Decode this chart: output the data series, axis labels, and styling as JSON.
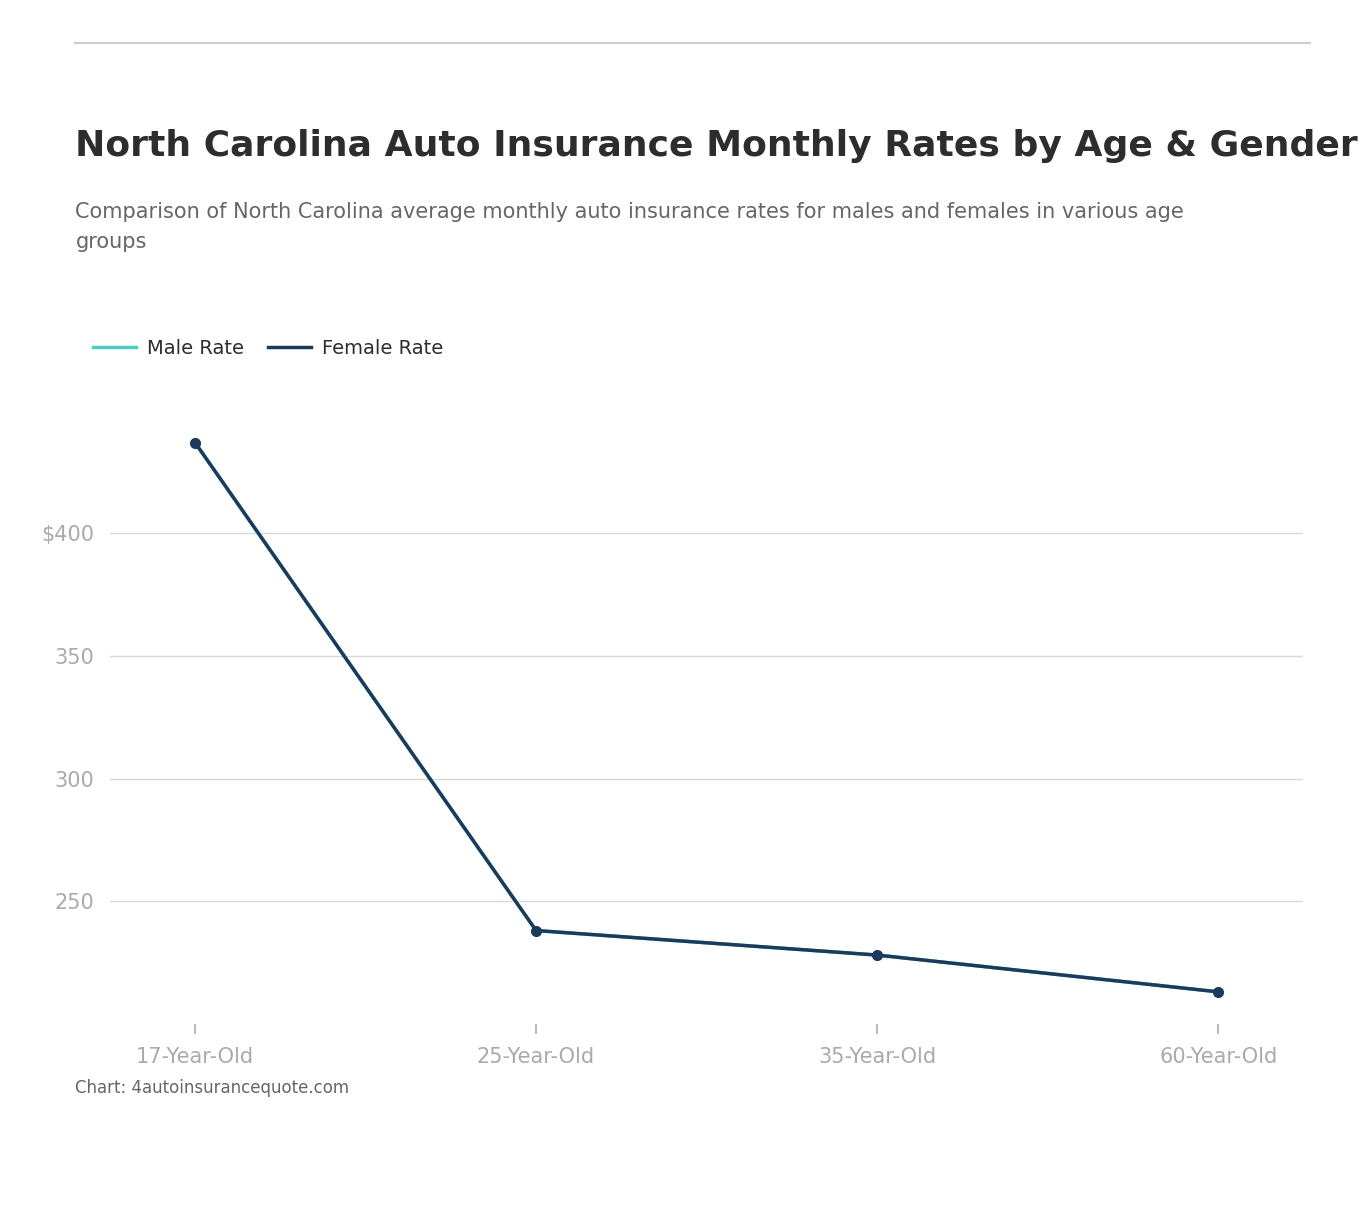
{
  "title": "North Carolina Auto Insurance Monthly Rates by Age & Gender",
  "subtitle": "Comparison of North Carolina average monthly auto insurance rates for males and females in various age\ngroups",
  "categories": [
    "17-Year-Old",
    "25-Year-Old",
    "35-Year-Old",
    "60-Year-Old"
  ],
  "male_values": [
    437,
    238,
    228,
    213
  ],
  "female_values": [
    437,
    238,
    228,
    213
  ],
  "male_color": "#4ecdc4",
  "female_color": "#1b3a5c",
  "yticks": [
    250,
    300,
    350,
    400
  ],
  "ytick_labels": [
    "250",
    "300",
    "350",
    "$400"
  ],
  "ylim": [
    200,
    460
  ],
  "legend_male": "Male Rate",
  "legend_female": "Female Rate",
  "source_text": "Chart: 4autoinsurancequote.com",
  "background_color": "#ffffff",
  "grid_color": "#d9d9d9",
  "title_color": "#2d2d2d",
  "subtitle_color": "#666666",
  "axis_label_color": "#aaaaaa",
  "title_fontsize": 26,
  "subtitle_fontsize": 15,
  "tick_fontsize": 15,
  "legend_fontsize": 14,
  "source_fontsize": 12,
  "top_border_color": "#cccccc"
}
